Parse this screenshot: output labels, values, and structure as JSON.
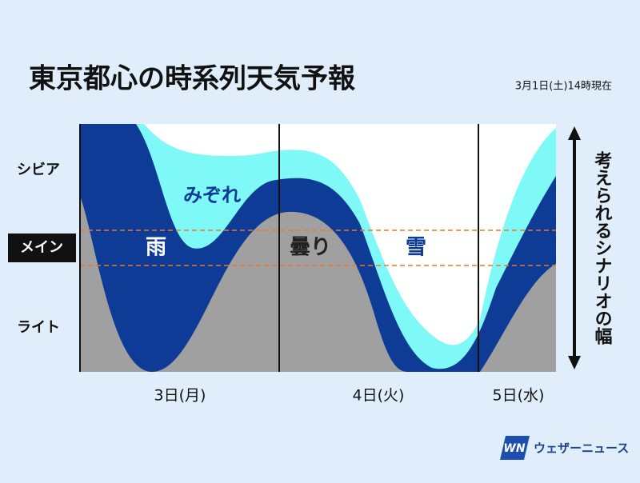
{
  "title": "東京都心の時系列天気予報",
  "timestamp": "3月1日(土)14時現在",
  "scenario_labels": [
    "シビア",
    "メイン",
    "ライト"
  ],
  "region_labels": {
    "sleet": "みぞれ",
    "rain": "雨",
    "cloudy": "曇り",
    "snow": "雪"
  },
  "days": [
    "3日(月)",
    "4日(火)",
    "5日(水)"
  ],
  "range_label": "考えられるシナリオの幅",
  "logo": {
    "mark": "WN",
    "name": "ウェザーニュース"
  }
}
